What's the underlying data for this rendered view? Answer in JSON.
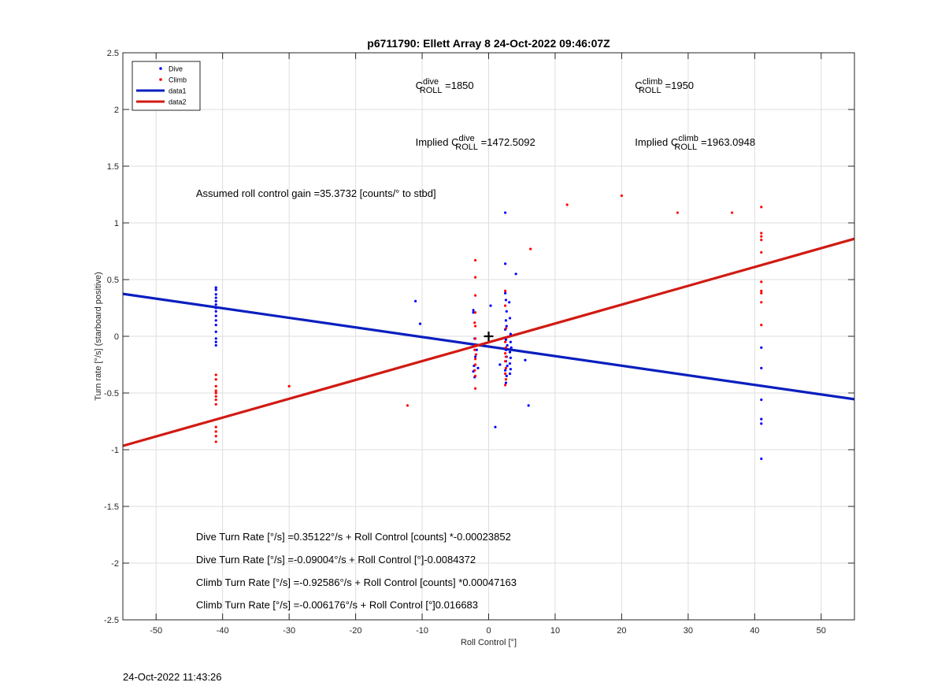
{
  "chart_data": {
    "type": "scatter",
    "title": "p6711790: Ellett Array 8 24-Oct-2022 09:46:07Z",
    "xlabel": "Roll Control [°]",
    "ylabel": "Turn rate [°/s] (starboard positive)",
    "xlim": [
      -55,
      55
    ],
    "ylim": [
      -2.5,
      2.5
    ],
    "grid": true,
    "x_ticks": [
      -50,
      -40,
      -30,
      -20,
      -10,
      0,
      10,
      20,
      30,
      40,
      50
    ],
    "y_ticks": [
      -2.5,
      -2,
      -1.5,
      -1,
      -0.5,
      0,
      0.5,
      1,
      1.5,
      2,
      2.5
    ],
    "x_tick_labels": [
      "-50",
      "-40",
      "-30",
      "-20",
      "-10",
      "0",
      "10",
      "20",
      "30",
      "40",
      "50"
    ],
    "y_tick_labels": [
      "-2.5",
      "-2",
      "-1.5",
      "-1",
      "-0.5",
      "0",
      "0.5",
      "1",
      "1.5",
      "2",
      "2.5"
    ],
    "legend": {
      "placement": "top-left",
      "entries": [
        {
          "label": "Dive",
          "style": "dot",
          "color": "#0000ff"
        },
        {
          "label": "Climb",
          "style": "dot",
          "color": "#ff0000"
        },
        {
          "label": "data1",
          "style": "line",
          "color": "#0000ff"
        },
        {
          "label": "data2",
          "style": "line",
          "color": "#ff0000"
        }
      ]
    },
    "series": [
      {
        "name": "Dive",
        "type": "scatter",
        "color": "#0000ff",
        "points": [
          [
            -41.0,
            0.43
          ],
          [
            -41.0,
            0.41
          ],
          [
            -41.0,
            0.37
          ],
          [
            -41.0,
            0.34
          ],
          [
            -41.0,
            0.31
          ],
          [
            -41.0,
            0.28
          ],
          [
            -41.0,
            0.25
          ],
          [
            -41.0,
            0.22
          ],
          [
            -41.0,
            0.18
          ],
          [
            -41.0,
            0.14
          ],
          [
            -41.0,
            0.1
          ],
          [
            -41.0,
            0.04
          ],
          [
            -41.0,
            -0.02
          ],
          [
            -41.0,
            -0.05
          ],
          [
            -41.0,
            -0.08
          ],
          [
            -11.0,
            0.31
          ],
          [
            -10.3,
            0.11
          ],
          [
            -2.3,
            0.23
          ],
          [
            -2.3,
            0.21
          ],
          [
            -2.1,
            -0.02
          ],
          [
            -2.0,
            -0.18
          ],
          [
            -2.2,
            -0.26
          ],
          [
            -2.3,
            -0.31
          ],
          [
            -2.1,
            -0.36
          ],
          [
            -1.6,
            -0.28
          ],
          [
            -1.8,
            -0.12
          ],
          [
            2.5,
            1.09
          ],
          [
            2.5,
            0.64
          ],
          [
            2.5,
            0.38
          ],
          [
            2.6,
            0.32
          ],
          [
            2.7,
            0.22
          ],
          [
            2.6,
            0.14
          ],
          [
            2.7,
            0.09
          ],
          [
            2.5,
            0.06
          ],
          [
            2.6,
            -0.03
          ],
          [
            2.8,
            -0.08
          ],
          [
            2.6,
            -0.12
          ],
          [
            2.7,
            -0.18
          ],
          [
            2.6,
            -0.22
          ],
          [
            2.8,
            -0.26
          ],
          [
            2.5,
            -0.3
          ],
          [
            2.7,
            -0.35
          ],
          [
            2.6,
            -0.41
          ],
          [
            3.1,
            0.3
          ],
          [
            3.2,
            0.16
          ],
          [
            3.3,
            0.02
          ],
          [
            3.3,
            -0.05
          ],
          [
            3.4,
            -0.1
          ],
          [
            3.2,
            -0.14
          ],
          [
            3.3,
            -0.19
          ],
          [
            3.2,
            -0.24
          ],
          [
            3.3,
            -0.29
          ],
          [
            3.2,
            -0.33
          ],
          [
            0.3,
            0.27
          ],
          [
            1.7,
            -0.25
          ],
          [
            4.1,
            0.55
          ],
          [
            5.5,
            -0.21
          ],
          [
            6.0,
            -0.61
          ],
          [
            1.0,
            -0.8
          ],
          [
            41.0,
            -0.1
          ],
          [
            41.0,
            -0.28
          ],
          [
            41.0,
            -0.56
          ],
          [
            41.0,
            -0.73
          ],
          [
            41.0,
            -0.77
          ],
          [
            41.0,
            -1.08
          ]
        ]
      },
      {
        "name": "Climb",
        "type": "scatter",
        "color": "#ff0000",
        "points": [
          [
            -41.0,
            -0.34
          ],
          [
            -41.0,
            -0.38
          ],
          [
            -41.0,
            -0.44
          ],
          [
            -41.0,
            -0.48
          ],
          [
            -41.0,
            -0.5
          ],
          [
            -41.0,
            -0.53
          ],
          [
            -41.0,
            -0.56
          ],
          [
            -41.0,
            -0.6
          ],
          [
            -41.0,
            -0.8
          ],
          [
            -41.0,
            -0.84
          ],
          [
            -41.0,
            -0.88
          ],
          [
            -41.0,
            -0.93
          ],
          [
            -30.0,
            -0.44
          ],
          [
            -12.2,
            -0.61
          ],
          [
            -2.0,
            0.67
          ],
          [
            -2.0,
            0.52
          ],
          [
            -2.0,
            0.36
          ],
          [
            -2.0,
            0.21
          ],
          [
            -2.1,
            0.12
          ],
          [
            -2.0,
            0.09
          ],
          [
            -2.0,
            -0.02
          ],
          [
            -2.0,
            -0.08
          ],
          [
            -2.1,
            -0.12
          ],
          [
            -1.9,
            -0.16
          ],
          [
            -2.0,
            -0.2
          ],
          [
            -2.0,
            -0.25
          ],
          [
            -2.1,
            -0.3
          ],
          [
            -2.0,
            -0.35
          ],
          [
            -2.0,
            -0.46
          ],
          [
            2.5,
            0.4
          ],
          [
            2.5,
            0.27
          ],
          [
            2.6,
            0.07
          ],
          [
            2.5,
            -0.05
          ],
          [
            2.6,
            -0.1
          ],
          [
            2.5,
            -0.15
          ],
          [
            2.6,
            -0.18
          ],
          [
            2.5,
            -0.22
          ],
          [
            2.6,
            -0.28
          ],
          [
            2.5,
            -0.33
          ],
          [
            2.6,
            -0.38
          ],
          [
            2.5,
            -0.43
          ],
          [
            6.3,
            0.77
          ],
          [
            11.8,
            1.16
          ],
          [
            20.0,
            1.24
          ],
          [
            28.4,
            1.09
          ],
          [
            36.6,
            1.09
          ],
          [
            41.0,
            1.14
          ],
          [
            41.0,
            0.91
          ],
          [
            41.0,
            0.88
          ],
          [
            41.0,
            0.85
          ],
          [
            41.0,
            0.74
          ],
          [
            41.0,
            0.48
          ],
          [
            41.0,
            0.4
          ],
          [
            41.0,
            0.38
          ],
          [
            41.0,
            0.3
          ],
          [
            41.0,
            0.1
          ]
        ]
      },
      {
        "name": "data1",
        "type": "line",
        "color": "#0000ff",
        "points": [
          [
            -55,
            0.374
          ],
          [
            55,
            -0.555
          ]
        ]
      },
      {
        "name": "data2",
        "type": "line",
        "color": "#ff0000",
        "points": [
          [
            -55,
            -0.966
          ],
          [
            55,
            0.86
          ]
        ]
      }
    ],
    "marker": {
      "x": 0,
      "y": 0,
      "symbol": "+"
    },
    "annotations": [
      {
        "id": "cdive",
        "base": "C",
        "sup": "dive",
        "sub": "ROLL",
        "suffix": " =1850",
        "prefix": "",
        "x": -11,
        "y": 2.18
      },
      {
        "id": "cclimb",
        "base": "C",
        "sup": "climb",
        "sub": "ROLL",
        "suffix": " =1950",
        "prefix": "",
        "x": 22,
        "y": 2.18
      },
      {
        "id": "implied-dive",
        "base": "C",
        "sup": "dive",
        "sub": "ROLL",
        "suffix": " =1472.5092",
        "prefix": "Implied ",
        "x": -11,
        "y": 1.68
      },
      {
        "id": "implied-climb",
        "base": "C",
        "sup": "climb",
        "sub": "ROLL",
        "suffix": " =1963.0948",
        "prefix": "Implied ",
        "x": 22,
        "y": 1.68
      },
      {
        "id": "gain",
        "text": "Assumed roll control gain =35.3732 [counts/° to stbd]",
        "x": -44,
        "y": 1.23
      },
      {
        "id": "eq1",
        "text": "Dive Turn Rate [°/s] =0.35122°/s + Roll Control [counts] *-0.00023852",
        "x": -44,
        "y": -1.8
      },
      {
        "id": "eq2",
        "text": "Dive Turn Rate [°/s] =-0.09004°/s + Roll Control [°]-0.0084372",
        "x": -44,
        "y": -2.0
      },
      {
        "id": "eq3",
        "text": "Climb Turn Rate [°/s] =-0.92586°/s + Roll Control [counts] *0.00047163",
        "x": -44,
        "y": -2.2
      },
      {
        "id": "eq4",
        "text": "Climb Turn Rate [°/s] =-0.006176°/s + Roll Control [°]0.016683",
        "x": -44,
        "y": -2.4
      }
    ]
  },
  "footer": {
    "timestamp": "24-Oct-2022 11:43:26"
  }
}
